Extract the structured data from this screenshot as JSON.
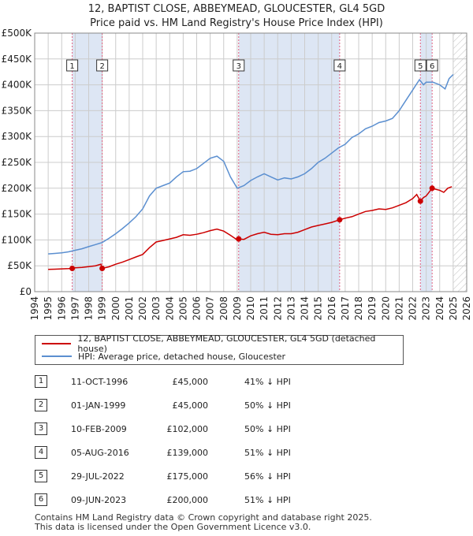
{
  "title_line1": "12, BAPTIST CLOSE, ABBEYMEAD, GLOUCESTER, GL4 5GD",
  "title_line2": "Price paid vs. HM Land Registry's House Price Index (HPI)",
  "colors": {
    "property": "#cc0000",
    "hpi": "#5b8fd0",
    "band": "#dde6f4",
    "grid": "#cccccc",
    "sale_vline": "#e06080"
  },
  "legend": {
    "property_label": "12, BAPTIST CLOSE, ABBEYMEAD, GLOUCESTER, GL4 5GD (detached house)",
    "hpi_label": "HPI: Average price, detached house, Gloucester"
  },
  "sales": [
    {
      "num": "1",
      "date": "11-OCT-1996",
      "price": "£45,000",
      "hpi": "41% ↓ HPI"
    },
    {
      "num": "2",
      "date": "01-JAN-1999",
      "price": "£45,000",
      "hpi": "50% ↓ HPI"
    },
    {
      "num": "3",
      "date": "10-FEB-2009",
      "price": "£102,000",
      "hpi": "50% ↓ HPI"
    },
    {
      "num": "4",
      "date": "05-AUG-2016",
      "price": "£139,000",
      "hpi": "51% ↓ HPI"
    },
    {
      "num": "5",
      "date": "29-JUL-2022",
      "price": "£175,000",
      "hpi": "56% ↓ HPI"
    },
    {
      "num": "6",
      "date": "09-JUN-2023",
      "price": "£200,000",
      "hpi": "51% ↓ HPI"
    }
  ],
  "footer_line1": "Contains HM Land Registry data © Crown copyright and database right 2025.",
  "footer_line2": "This data is licensed under the Open Government Licence v3.0.",
  "chart_data": {
    "type": "line",
    "title": "12, BAPTIST CLOSE, ABBEYMEAD, GLOUCESTER, GL4 5GD",
    "subtitle": "Price paid vs. HM Land Registry's House Price Index (HPI)",
    "xlim": [
      1994,
      2026
    ],
    "ylim": [
      0,
      500000
    ],
    "x_ticks": [
      1994,
      1995,
      1996,
      1997,
      1998,
      1999,
      2000,
      2001,
      2002,
      2003,
      2004,
      2005,
      2006,
      2007,
      2008,
      2009,
      2010,
      2011,
      2012,
      2013,
      2014,
      2015,
      2016,
      2017,
      2018,
      2019,
      2020,
      2021,
      2022,
      2023,
      2024,
      2025,
      2026
    ],
    "y_ticks": [
      0,
      50000,
      100000,
      150000,
      200000,
      250000,
      300000,
      350000,
      400000,
      450000,
      500000
    ],
    "y_tick_labels": [
      "£0",
      "£50K",
      "£100K",
      "£150K",
      "£200K",
      "£250K",
      "£300K",
      "£350K",
      "£400K",
      "£450K",
      "£500K"
    ],
    "grid": true,
    "shaded_bands": [
      [
        1996.78,
        1999.0
      ],
      [
        2009.11,
        2016.59
      ],
      [
        2022.57,
        2023.44
      ]
    ],
    "hatched_future_from": 2025.0,
    "series": [
      {
        "name": "12, BAPTIST CLOSE, ABBEYMEAD, GLOUCESTER, GL4 5GD (detached house)",
        "x": [
          1995.0,
          1995.5,
          1996.0,
          1996.5,
          1996.78,
          1997.0,
          1997.5,
          1998.0,
          1998.5,
          1998.9,
          1999.0,
          1999.5,
          2000.0,
          2000.5,
          2001.0,
          2001.5,
          2002.0,
          2002.5,
          2003.0,
          2003.5,
          2004.0,
          2004.5,
          2005.0,
          2005.5,
          2006.0,
          2006.5,
          2007.0,
          2007.5,
          2008.0,
          2008.5,
          2009.0,
          2009.11,
          2009.5,
          2010.0,
          2010.5,
          2011.0,
          2011.5,
          2012.0,
          2012.5,
          2013.0,
          2013.5,
          2014.0,
          2014.5,
          2015.0,
          2015.5,
          2016.0,
          2016.59,
          2017.0,
          2017.5,
          2018.0,
          2018.5,
          2019.0,
          2019.5,
          2020.0,
          2020.5,
          2021.0,
          2021.5,
          2022.0,
          2022.3,
          2022.57,
          2022.8,
          2023.0,
          2023.44,
          2023.7,
          2024.0,
          2024.3,
          2024.6,
          2024.9
        ],
        "values": [
          43000,
          43500,
          44000,
          44500,
          45000,
          46000,
          47000,
          48500,
          50000,
          53000,
          45000,
          48000,
          53000,
          57000,
          62000,
          67000,
          72000,
          85000,
          96000,
          99000,
          102000,
          105000,
          110000,
          109000,
          111000,
          114000,
          118000,
          121000,
          117000,
          109000,
          100000,
          102000,
          101000,
          108000,
          112000,
          115000,
          111000,
          110000,
          112000,
          112000,
          115000,
          120000,
          125000,
          128000,
          131000,
          134000,
          139000,
          142000,
          145000,
          150000,
          155000,
          157000,
          160000,
          159000,
          162000,
          167000,
          172000,
          180000,
          188000,
          175000,
          182000,
          185000,
          200000,
          198000,
          196000,
          192000,
          200000,
          203000
        ]
      },
      {
        "name": "HPI: Average price, detached house, Gloucester",
        "x": [
          1995.0,
          1995.5,
          1996.0,
          1996.5,
          1997.0,
          1997.5,
          1998.0,
          1998.5,
          1999.0,
          1999.5,
          2000.0,
          2000.5,
          2001.0,
          2001.5,
          2002.0,
          2002.5,
          2003.0,
          2003.5,
          2004.0,
          2004.5,
          2005.0,
          2005.5,
          2006.0,
          2006.5,
          2007.0,
          2007.5,
          2008.0,
          2008.5,
          2009.0,
          2009.5,
          2010.0,
          2010.5,
          2011.0,
          2011.5,
          2012.0,
          2012.5,
          2013.0,
          2013.5,
          2014.0,
          2014.5,
          2015.0,
          2015.5,
          2016.0,
          2016.5,
          2017.0,
          2017.5,
          2018.0,
          2018.5,
          2019.0,
          2019.5,
          2020.0,
          2020.5,
          2021.0,
          2021.5,
          2022.0,
          2022.5,
          2022.8,
          2023.0,
          2023.5,
          2024.0,
          2024.4,
          2024.7,
          2025.0
        ],
        "values": [
          73000,
          74000,
          75000,
          77000,
          80000,
          83000,
          87000,
          91000,
          95000,
          103000,
          112000,
          122000,
          133000,
          145000,
          160000,
          185000,
          200000,
          205000,
          210000,
          222000,
          232000,
          233000,
          238000,
          248000,
          258000,
          262000,
          252000,
          222000,
          200000,
          205000,
          215000,
          222000,
          228000,
          222000,
          216000,
          220000,
          218000,
          222000,
          228000,
          238000,
          250000,
          258000,
          268000,
          278000,
          285000,
          298000,
          305000,
          315000,
          320000,
          327000,
          330000,
          335000,
          350000,
          370000,
          390000,
          410000,
          400000,
          405000,
          405000,
          400000,
          392000,
          412000,
          420000
        ]
      }
    ],
    "sale_markers": [
      {
        "label": "1",
        "x": 1996.78,
        "y": 45000
      },
      {
        "label": "2",
        "x": 1999.0,
        "y": 45000
      },
      {
        "label": "3",
        "x": 2009.11,
        "y": 102000
      },
      {
        "label": "4",
        "x": 2016.59,
        "y": 139000
      },
      {
        "label": "5",
        "x": 2022.57,
        "y": 175000
      },
      {
        "label": "6",
        "x": 2023.44,
        "y": 200000
      }
    ]
  }
}
